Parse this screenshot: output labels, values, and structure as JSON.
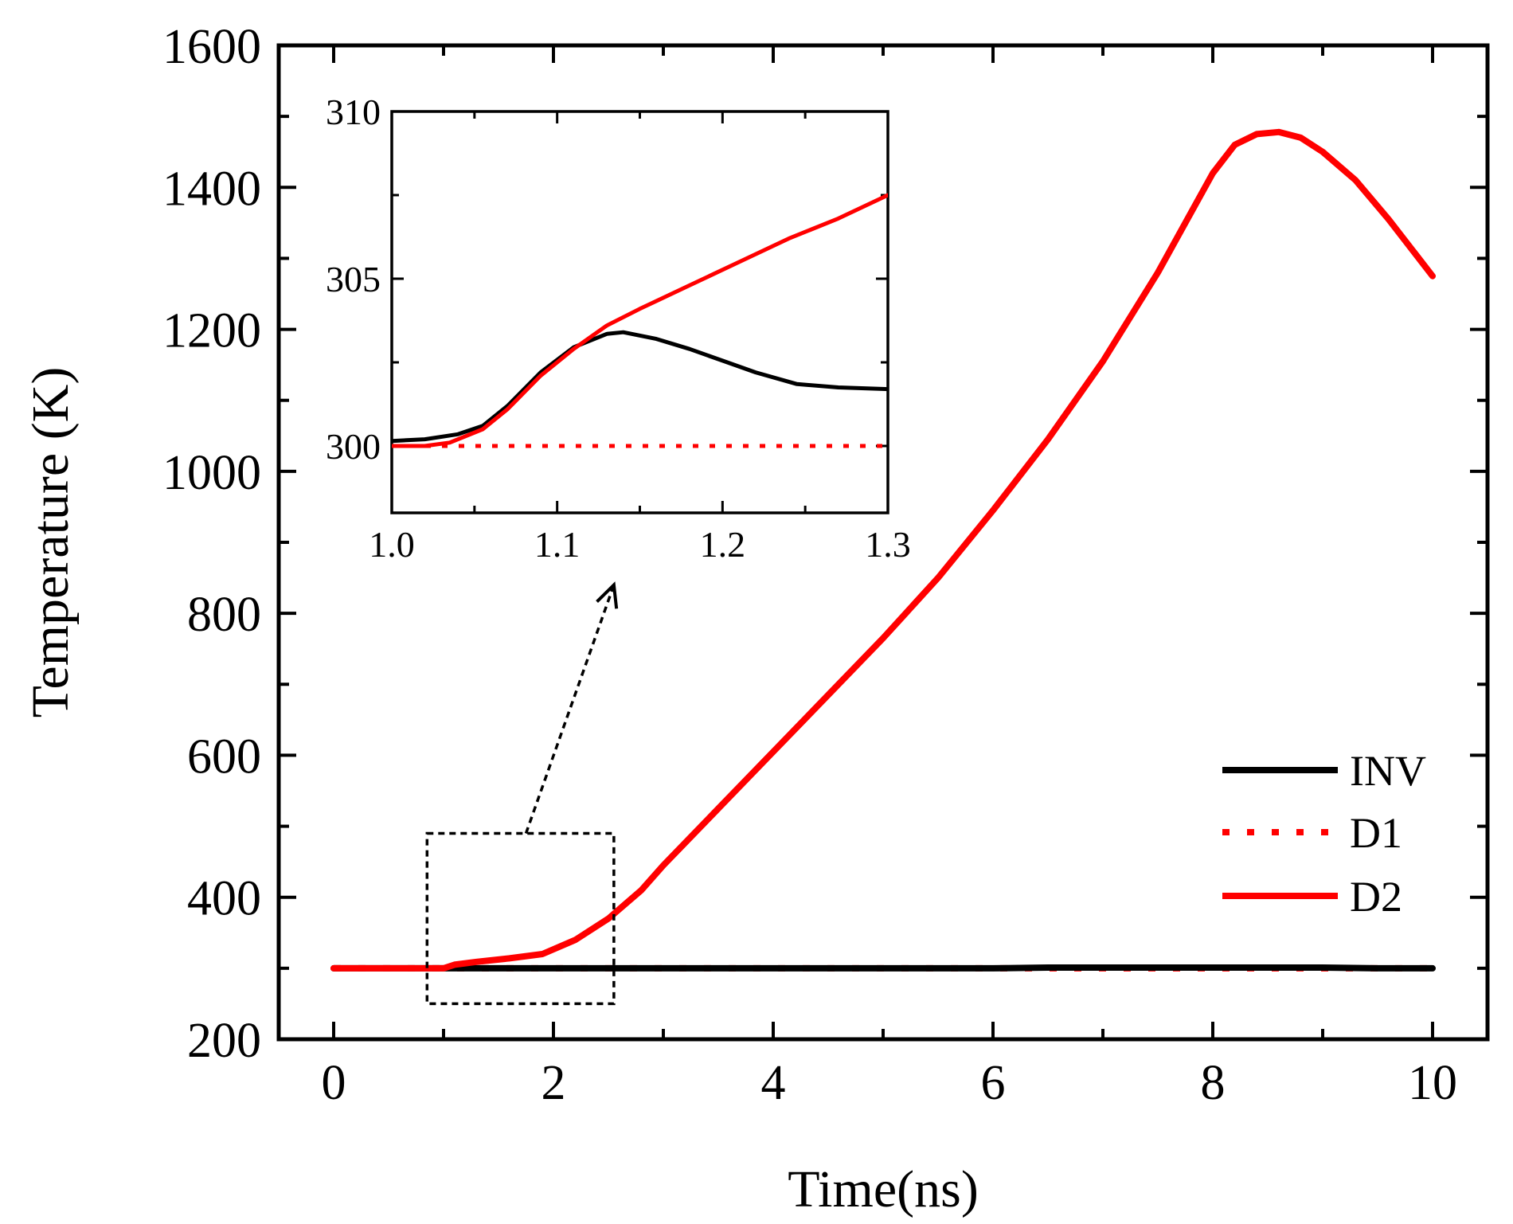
{
  "chart_data": [
    {
      "id": "main",
      "type": "line",
      "title": "",
      "xlabel": "Time(ns)",
      "ylabel": "Temperature (K)",
      "xlim": [
        -0.5,
        10.5
      ],
      "ylim": [
        200,
        1600
      ],
      "xticks": [
        0,
        2,
        4,
        6,
        8,
        10
      ],
      "yticks": [
        200,
        400,
        600,
        800,
        1000,
        1200,
        1400,
        1600
      ],
      "xtick_labels": [
        "0",
        "2",
        "4",
        "6",
        "8",
        "10"
      ],
      "ytick_labels": [
        "200",
        "400",
        "600",
        "800",
        "1000",
        "1200",
        "1400",
        "1600"
      ],
      "legend_position": "bottom-right",
      "series": [
        {
          "name": "INV",
          "color": "#000000",
          "style": "solid",
          "x": [
            0,
            1,
            2,
            3,
            4,
            5,
            6,
            6.5,
            7,
            8,
            9,
            9.5,
            10
          ],
          "y": [
            300,
            300,
            300,
            300,
            300,
            300,
            300,
            301,
            301,
            301,
            301,
            300,
            300
          ]
        },
        {
          "name": "D1",
          "color": "#ff0000",
          "style": "dotted",
          "x": [
            0,
            10
          ],
          "y": [
            300,
            300
          ]
        },
        {
          "name": "D2",
          "color": "#ff0000",
          "style": "solid",
          "x": [
            0,
            0.5,
            1.0,
            1.1,
            1.3,
            1.6,
            1.9,
            2.2,
            2.5,
            2.8,
            3.0,
            3.5,
            4.0,
            4.5,
            5.0,
            5.5,
            6.0,
            6.5,
            7.0,
            7.5,
            8.0,
            8.2,
            8.4,
            8.6,
            8.8,
            9.0,
            9.3,
            9.6,
            10.0
          ],
          "y": [
            300,
            300,
            300,
            305,
            309,
            314,
            320,
            340,
            370,
            410,
            445,
            525,
            605,
            685,
            765,
            850,
            945,
            1045,
            1155,
            1280,
            1420,
            1460,
            1475,
            1478,
            1470,
            1450,
            1410,
            1355,
            1275
          ]
        }
      ],
      "annotations": [
        {
          "type": "dashed-box",
          "x_range": [
            0.85,
            2.55
          ],
          "y_range": [
            250,
            490
          ]
        },
        {
          "type": "arrow",
          "from": [
            1.75,
            490
          ],
          "to": [
            2.55,
            840
          ]
        }
      ]
    },
    {
      "id": "inset",
      "type": "line",
      "title": "",
      "xlabel": "",
      "ylabel": "",
      "xlim": [
        1.0,
        1.3
      ],
      "ylim": [
        298,
        310
      ],
      "xticks": [
        1.0,
        1.1,
        1.2,
        1.3
      ],
      "yticks": [
        300,
        305,
        310
      ],
      "xtick_labels": [
        "1.0",
        "1.1",
        "1.2",
        "1.3"
      ],
      "ytick_labels": [
        "300",
        "305",
        "310"
      ],
      "series": [
        {
          "name": "INV",
          "color": "#000000",
          "style": "solid",
          "x": [
            1.0,
            1.02,
            1.04,
            1.055,
            1.07,
            1.09,
            1.11,
            1.13,
            1.14,
            1.16,
            1.18,
            1.2,
            1.22,
            1.245,
            1.27,
            1.3
          ],
          "y": [
            300.15,
            300.2,
            300.35,
            300.6,
            301.2,
            302.2,
            302.95,
            303.35,
            303.4,
            303.2,
            302.9,
            302.55,
            302.2,
            301.85,
            301.75,
            301.7
          ]
        },
        {
          "name": "D1",
          "color": "#ff0000",
          "style": "dotted",
          "x": [
            1.0,
            1.3
          ],
          "y": [
            300.0,
            300.0
          ]
        },
        {
          "name": "D2",
          "color": "#ff0000",
          "style": "solid",
          "x": [
            1.0,
            1.02,
            1.035,
            1.055,
            1.07,
            1.09,
            1.11,
            1.13,
            1.15,
            1.18,
            1.21,
            1.24,
            1.27,
            1.3
          ],
          "y": [
            300.0,
            300.0,
            300.1,
            300.5,
            301.1,
            302.1,
            302.9,
            303.6,
            304.1,
            304.8,
            305.5,
            306.2,
            306.8,
            307.5
          ]
        }
      ]
    }
  ]
}
